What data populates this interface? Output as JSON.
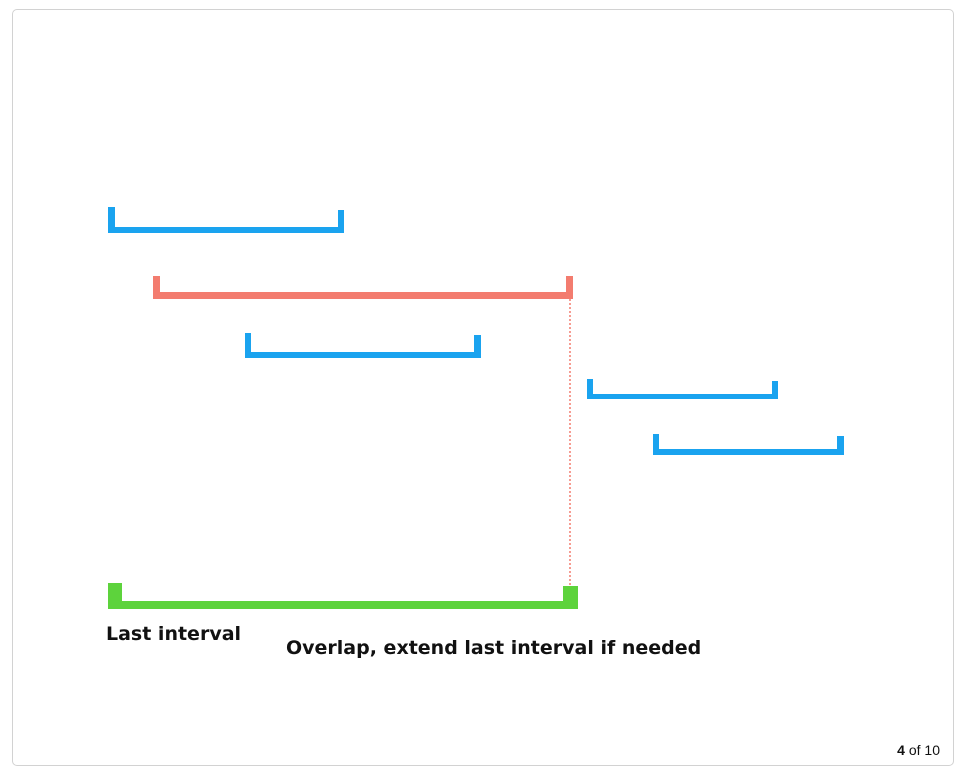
{
  "diagram": {
    "labels": {
      "last_interval": "Last interval",
      "caption": "Overlap, extend last interval if needed"
    },
    "colors": {
      "interval": "#1aa3ef",
      "current": "#f37c6f",
      "last": "#5dd33c",
      "guide": "#f37c6f"
    }
  },
  "pagination": {
    "current": "4",
    "separator": "of",
    "total": "10"
  }
}
